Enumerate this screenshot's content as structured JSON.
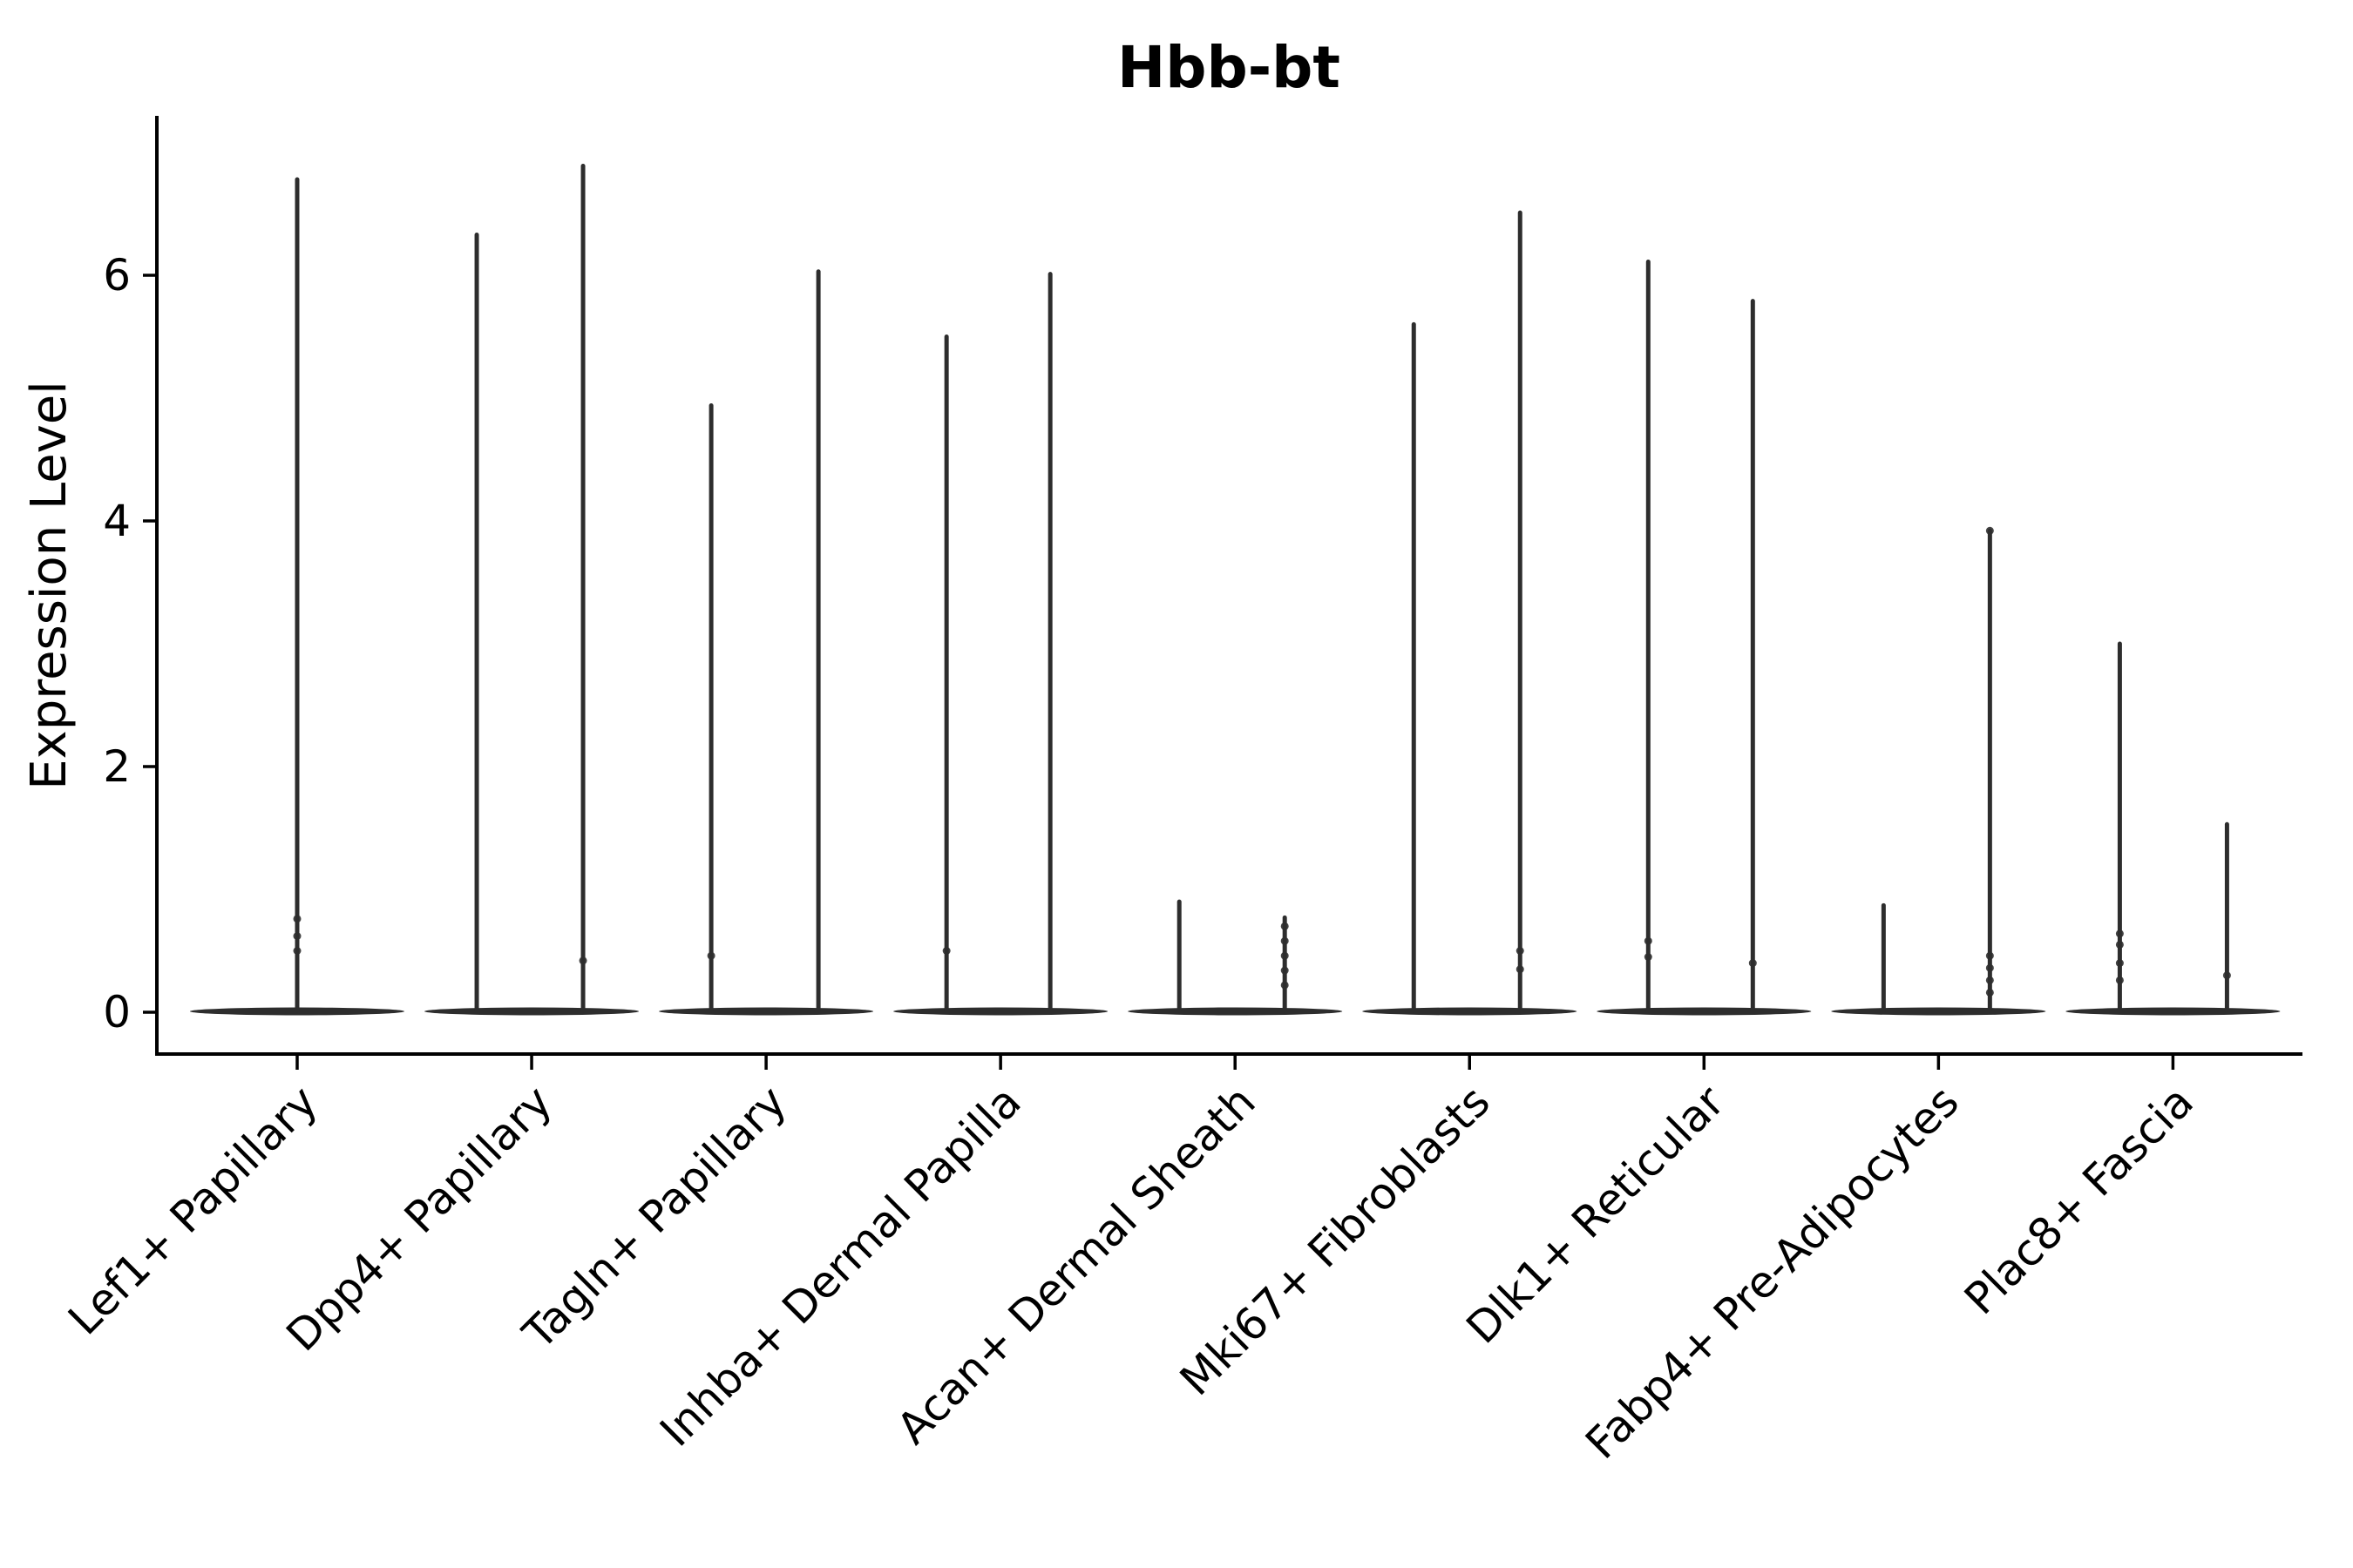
{
  "chart_data": {
    "type": "violin",
    "title": "Hbb-bt",
    "ylabel": "Expression Level",
    "xlabel": "",
    "yticks": [
      0,
      2,
      4,
      6
    ],
    "ylim": [
      -0.35,
      7.3
    ],
    "grid": false,
    "legend": null,
    "categories": [
      "Lef1+ Papillary",
      "Dpp4+ Papillary",
      "Tagln+ Papillary",
      "Inhba+ Dermal Papilla",
      "Acan+ Dermal Sheath",
      "Mki67+ Fibroblasts",
      "Dlk1+ Reticular",
      "Fabp4+ Pre-Adipocytes",
      "Plac8+ Fascia"
    ],
    "violins": [
      {
        "category": "Lef1+ Papillary",
        "base_value": 0,
        "spikes": [
          {
            "offset": 0,
            "max": 6.78,
            "dots": [
              0.5,
              0.62,
              0.76
            ]
          }
        ]
      },
      {
        "category": "Dpp4+ Papillary",
        "base_value": 0,
        "spikes": [
          {
            "offset": -63,
            "max": 6.33,
            "dots": []
          },
          {
            "offset": 59,
            "max": 6.89,
            "dots": [
              0.42
            ]
          }
        ]
      },
      {
        "category": "Tagln+ Papillary",
        "base_value": 0,
        "spikes": [
          {
            "offset": -63,
            "max": 4.94,
            "dots": [
              0.46
            ]
          },
          {
            "offset": 60,
            "max": 6.03,
            "dots": []
          }
        ]
      },
      {
        "category": "Inhba+ Dermal Papilla",
        "base_value": 0,
        "spikes": [
          {
            "offset": -62,
            "max": 5.5,
            "dots": [
              0.5
            ]
          },
          {
            "offset": 57,
            "max": 6.01,
            "dots": []
          }
        ]
      },
      {
        "category": "Acan+ Dermal Sheath",
        "base_value": 0,
        "spikes": [
          {
            "offset": -64,
            "max": 0.9,
            "dots": []
          },
          {
            "offset": 57,
            "max": 0.77,
            "dots": [
              0.22,
              0.34,
              0.46,
              0.58,
              0.7
            ]
          }
        ]
      },
      {
        "category": "Mki67+ Fibroblasts",
        "base_value": 0,
        "spikes": [
          {
            "offset": -64,
            "max": 5.6,
            "dots": []
          },
          {
            "offset": 58,
            "max": 6.51,
            "dots": [
              0.35,
              0.5
            ]
          }
        ]
      },
      {
        "category": "Dlk1+ Reticular",
        "base_value": 0,
        "spikes": [
          {
            "offset": -64,
            "max": 6.11,
            "dots": [
              0.45,
              0.58
            ]
          },
          {
            "offset": 56,
            "max": 5.79,
            "dots": [
              0.4
            ]
          }
        ]
      },
      {
        "category": "Fabp4+ Pre-Adipocytes",
        "base_value": 0,
        "spikes": [
          {
            "offset": -63,
            "max": 0.87,
            "dots": []
          },
          {
            "offset": 59,
            "max": 3.92,
            "dots": [
              0.16,
              0.26,
              0.36,
              0.46,
              3.92
            ]
          }
        ]
      },
      {
        "category": "Plac8+ Fascia",
        "base_value": 0,
        "spikes": [
          {
            "offset": -61,
            "max": 3.0,
            "dots": [
              0.26,
              0.4,
              0.55,
              0.64
            ]
          },
          {
            "offset": 62,
            "max": 1.53,
            "dots": [
              0.3
            ]
          }
        ]
      }
    ],
    "colors": {
      "violin": "#2d2d2d",
      "axis": "#000000",
      "text": "#000000",
      "background": "#ffffff"
    }
  }
}
